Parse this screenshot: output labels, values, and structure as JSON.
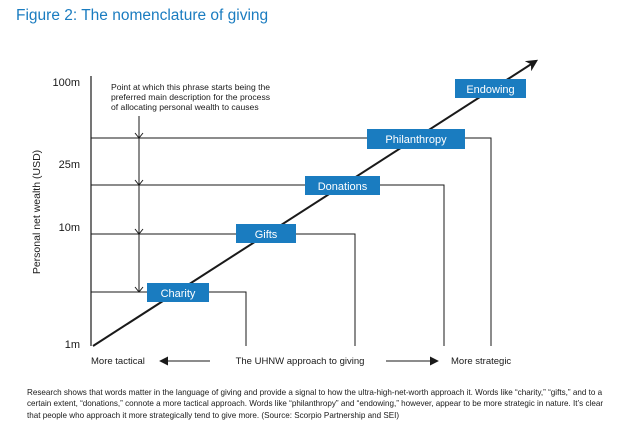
{
  "title": "Figure 2: The nomenclature of giving",
  "y_axis": {
    "label": "Personal net wealth (USD)",
    "ticks": [
      "100m",
      "25m",
      "10m",
      "1m"
    ]
  },
  "x_axis": {
    "left_label": "More tactical",
    "center_label": "The UHNW approach to giving",
    "right_label": "More strategic"
  },
  "annotation": {
    "lines": [
      "Point at which this phrase starts being the",
      "preferred main description for the process",
      "of allocating personal wealth to causes"
    ]
  },
  "terms": [
    {
      "label": "Charity"
    },
    {
      "label": "Gifts"
    },
    {
      "label": "Donations"
    },
    {
      "label": "Philanthropy"
    },
    {
      "label": "Endowing"
    }
  ],
  "colors": {
    "title": "#1a7cc0",
    "box_fill": "#1a7cc0",
    "box_text": "#ffffff",
    "lines": "#1a1a1a"
  },
  "caption": "Research shows that words matter in the language of giving and provide a signal to how the ultra-high-net-worth approach it. Words like “charity,” “gifts,” and to a certain extent, “donations,” connote a more tactical approach. Words like “philanthropy” and “endowing,” however, appear to be more strategic in nature. It’s clear that people who approach it more strategically tend to give more. (Source: Scorpio Partnership and SEI)"
}
